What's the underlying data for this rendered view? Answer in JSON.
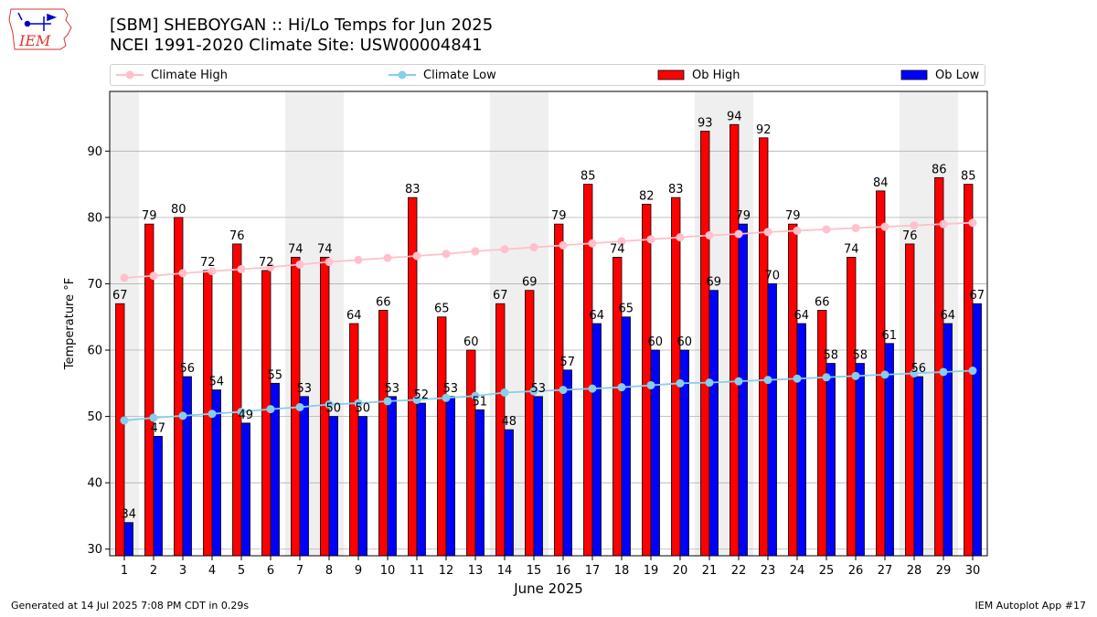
{
  "header": {
    "title_line1": "[SBM] SHEBOYGAN :: Hi/Lo Temps for Jun 2025",
    "title_line2": "NCEI 1991-2020 Climate Site: USW00004841",
    "logo_text": "IEM"
  },
  "footer": {
    "generated": "Generated at 14 Jul 2025 7:08 PM CDT in 0.29s",
    "app": "IEM Autoplot App #17"
  },
  "legend": {
    "climate_high": "Climate High",
    "climate_low": "Climate Low",
    "ob_high": "Ob High",
    "ob_low": "Ob Low"
  },
  "colors": {
    "ob_high": "#ff0000",
    "ob_low": "#0000ff",
    "climate_high": "#ffc0cb",
    "climate_low": "#87ceeb",
    "weekend_shade": "#efefef",
    "grid": "#b0b0b0"
  },
  "chart_data": {
    "type": "bar",
    "xlabel": "June 2025",
    "ylabel": "Temperature °F",
    "ylim": [
      29,
      99
    ],
    "yticks": [
      30,
      40,
      50,
      60,
      70,
      80,
      90
    ],
    "grid": "horizontal",
    "legend_position": "top",
    "categories": [
      "1",
      "2",
      "3",
      "4",
      "5",
      "6",
      "7",
      "8",
      "9",
      "10",
      "11",
      "12",
      "13",
      "14",
      "15",
      "16",
      "17",
      "18",
      "19",
      "20",
      "21",
      "22",
      "23",
      "24",
      "25",
      "26",
      "27",
      "28",
      "29",
      "30"
    ],
    "shaded_days": [
      1,
      7,
      8,
      14,
      15,
      21,
      22,
      28,
      29
    ],
    "series": [
      {
        "name": "Ob High",
        "type": "bar",
        "values": [
          67,
          79,
          80,
          72,
          76,
          72,
          74,
          74,
          64,
          66,
          83,
          65,
          60,
          67,
          69,
          79,
          85,
          74,
          82,
          83,
          93,
          94,
          92,
          79,
          66,
          74,
          84,
          76,
          86,
          85
        ]
      },
      {
        "name": "Ob Low",
        "type": "bar",
        "values": [
          34,
          47,
          56,
          54,
          49,
          55,
          53,
          50,
          50,
          53,
          52,
          53,
          51,
          48,
          53,
          57,
          64,
          65,
          60,
          60,
          69,
          79,
          70,
          64,
          58,
          58,
          61,
          56,
          64,
          67
        ]
      },
      {
        "name": "Climate High",
        "type": "line",
        "values": [
          70.9,
          71.2,
          71.6,
          71.9,
          72.2,
          72.5,
          72.9,
          73.3,
          73.6,
          73.9,
          74.2,
          74.5,
          74.9,
          75.2,
          75.5,
          75.8,
          76.1,
          76.4,
          76.7,
          77.0,
          77.3,
          77.5,
          77.8,
          78.0,
          78.2,
          78.4,
          78.6,
          78.8,
          79.0,
          79.2
        ]
      },
      {
        "name": "Climate Low",
        "type": "line",
        "values": [
          49.4,
          49.8,
          50.1,
          50.4,
          50.7,
          51.1,
          51.4,
          51.8,
          52.0,
          52.3,
          52.5,
          52.8,
          53.1,
          53.6,
          53.8,
          54.0,
          54.2,
          54.4,
          54.7,
          55.0,
          55.1,
          55.3,
          55.5,
          55.7,
          55.9,
          56.1,
          56.3,
          56.5,
          56.7,
          56.9
        ]
      }
    ]
  }
}
